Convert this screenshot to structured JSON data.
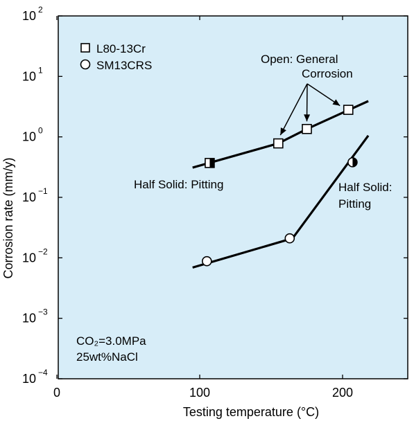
{
  "chart_data": {
    "type": "scatter",
    "xlabel": "Testing temperature (°C)",
    "ylabel": "Corrosion rate (mm/y)",
    "xlim": [
      0,
      250
    ],
    "ylim_log10": [
      -4,
      2
    ],
    "y_scale": "log",
    "grid": false,
    "background_color": "#d7edf8",
    "x_ticks": [
      {
        "value": 0,
        "label": "0"
      },
      {
        "value": 100,
        "label": "100"
      },
      {
        "value": 200,
        "label": "200"
      }
    ],
    "y_ticks": [
      {
        "exp": -4,
        "base": "10",
        "sup": "−4"
      },
      {
        "exp": -3,
        "base": "10",
        "sup": "−3"
      },
      {
        "exp": -2,
        "base": "10",
        "sup": "−2"
      },
      {
        "exp": -1,
        "base": "10",
        "sup": "−1"
      },
      {
        "exp": 0,
        "base": "10",
        "sup": "0"
      },
      {
        "exp": 1,
        "base": "10",
        "sup": "1"
      },
      {
        "exp": 2,
        "base": "10",
        "sup": "2"
      }
    ],
    "legend": {
      "placement": "top-left",
      "items": [
        {
          "marker": "square",
          "label": "L80-13Cr"
        },
        {
          "marker": "circle",
          "label": "SM13CRS"
        }
      ]
    },
    "series": [
      {
        "name": "L80-13Cr",
        "marker": "square",
        "points": [
          {
            "x": 107,
            "y": 0.37,
            "fill": "half"
          },
          {
            "x": 155,
            "y": 0.78,
            "fill": "open"
          },
          {
            "x": 175,
            "y": 1.35,
            "fill": "open"
          },
          {
            "x": 204,
            "y": 2.8,
            "fill": "open"
          }
        ],
        "trend": [
          [
            95,
            0.31
          ],
          [
            155,
            0.78
          ],
          [
            175,
            1.35
          ],
          [
            218,
            3.9
          ]
        ]
      },
      {
        "name": "SM13CRS",
        "marker": "circle",
        "points": [
          {
            "x": 105,
            "y": 0.0088,
            "fill": "open"
          },
          {
            "x": 163,
            "y": 0.021,
            "fill": "open"
          },
          {
            "x": 207,
            "y": 0.38,
            "fill": "half"
          }
        ],
        "trend": [
          [
            95,
            0.0069
          ],
          [
            165,
            0.021
          ],
          [
            218,
            1.05
          ]
        ]
      }
    ],
    "annotations": {
      "open_general": [
        "Open: General",
        "Corrosion"
      ],
      "half_pitting_1": "Half Solid: Pitting",
      "half_pitting_2": [
        "Half Solid:",
        "Pitting"
      ],
      "conditions": [
        "CO₂=3.0MPa",
        "25wt%NaCl"
      ]
    }
  }
}
